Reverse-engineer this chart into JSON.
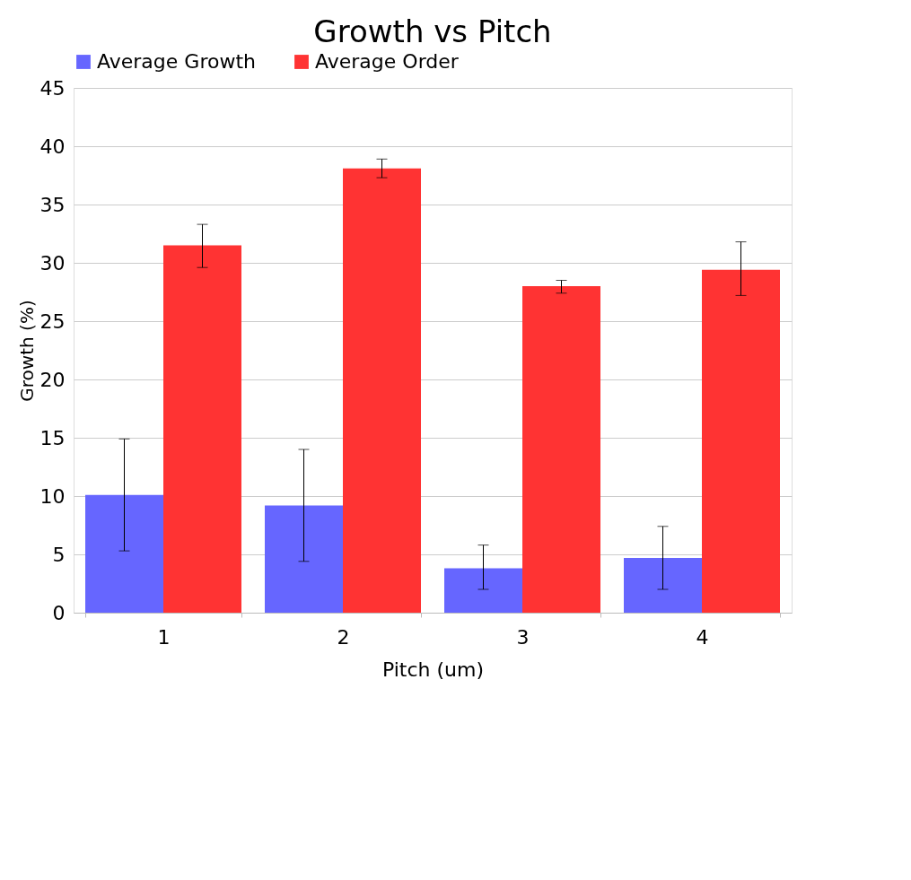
{
  "chart_data": {
    "type": "bar",
    "title": "Growth vs Pitch",
    "xlabel": "Pitch (um)",
    "ylabel": "Growth (%)",
    "categories": [
      "1",
      "2",
      "3",
      "4"
    ],
    "series": [
      {
        "name": "Average Growth",
        "color": "#6666ff",
        "values": [
          10.1,
          9.2,
          3.8,
          4.7
        ],
        "errors": [
          [
            5.3,
            14.9
          ],
          [
            4.4,
            14.0
          ],
          [
            2.0,
            5.8
          ],
          [
            2.0,
            7.4
          ]
        ]
      },
      {
        "name": "Average Order",
        "color": "#ff3333",
        "values": [
          31.5,
          38.1,
          28.0,
          29.4
        ],
        "errors": [
          [
            29.6,
            33.3
          ],
          [
            37.3,
            38.9
          ],
          [
            27.4,
            28.5
          ],
          [
            27.2,
            31.8
          ]
        ]
      }
    ],
    "ylim": [
      0,
      45
    ],
    "yticks": [
      0,
      5,
      10,
      15,
      20,
      25,
      30,
      35,
      40,
      45
    ],
    "grid": "y",
    "legend": "top"
  }
}
